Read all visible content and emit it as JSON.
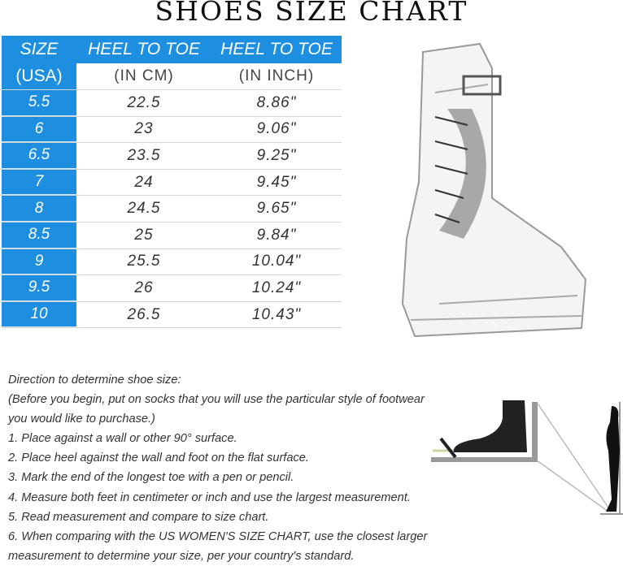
{
  "title": "SHOES SIZE CHART",
  "table": {
    "headers": [
      {
        "top": "SIZE",
        "bottom": "(USA)"
      },
      {
        "top": "HEEL TO TOE",
        "bottom": "(IN CM)"
      },
      {
        "top": "HEEL TO TOE",
        "bottom": "(IN INCH)"
      }
    ],
    "rows": [
      [
        "5.5",
        "22.5",
        "8.86\""
      ],
      [
        "6",
        "23",
        "9.06\""
      ],
      [
        "6.5",
        "23.5",
        "9.25\""
      ],
      [
        "7",
        "24",
        "9.45\""
      ],
      [
        "8",
        "24.5",
        "9.65\""
      ],
      [
        "8.5",
        "25",
        "9.84\""
      ],
      [
        "9",
        "25.5",
        "10.04\""
      ],
      [
        "9.5",
        "26",
        "10.24\""
      ],
      [
        "10",
        "26.5",
        "10.43\""
      ]
    ],
    "accent": "#1e8fe0"
  },
  "instructions": [
    "Direction to determine shoe size:",
    "(Before you begin, put on socks that you will use the particular style of footwear",
    "you would like to purchase.)",
    "1. Place against a wall or other 90° surface.",
    "2. Place heel against the wall and foot on the flat surface.",
    "3. Mark the end of the longest toe with a pen or pencil.",
    "4. Measure both feet in centimeter or inch and use the largest measurement.",
    "5. Read measurement and compare to size chart.",
    "6. When comparing with the US WOMEN'S SIZE CHART, use the closest larger",
    "measurement to determine your size, per your country's standard."
  ]
}
